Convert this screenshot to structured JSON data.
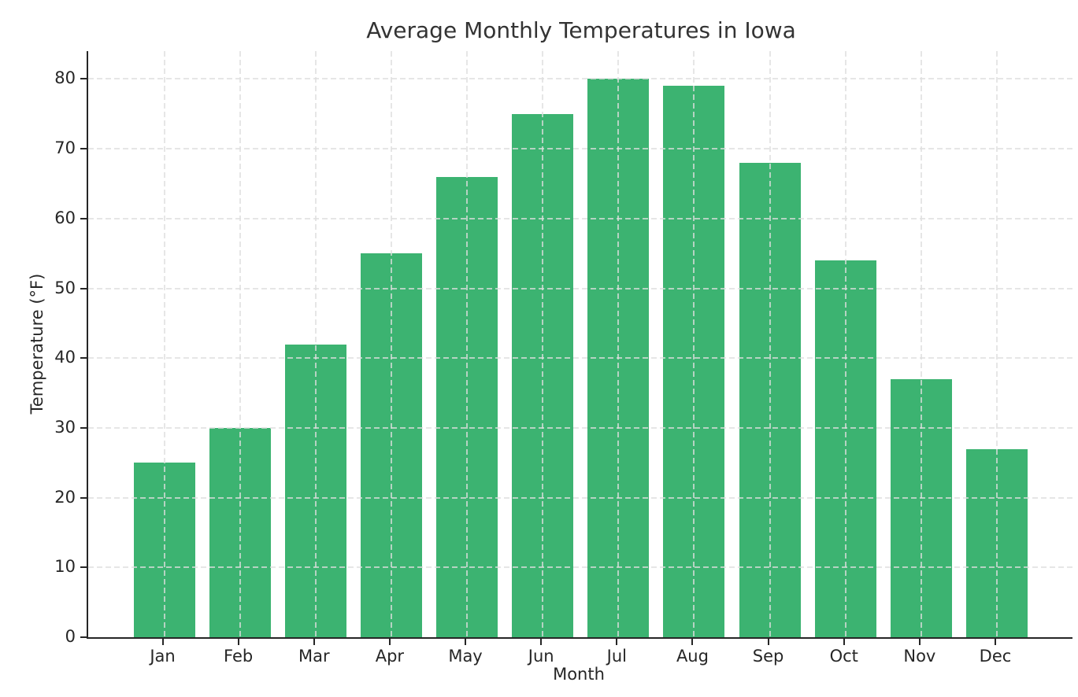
{
  "chart_data": {
    "type": "bar",
    "title": "Average Monthly Temperatures in Iowa",
    "xlabel": "Month",
    "ylabel": "Temperature (°F)",
    "categories": [
      "Jan",
      "Feb",
      "Mar",
      "Apr",
      "May",
      "Jun",
      "Jul",
      "Aug",
      "Sep",
      "Oct",
      "Nov",
      "Dec"
    ],
    "values": [
      25,
      30,
      42,
      55,
      66,
      75,
      80,
      79,
      68,
      54,
      37,
      27
    ],
    "ylim": [
      0,
      84
    ],
    "yticks": [
      0,
      10,
      20,
      30,
      40,
      50,
      60,
      70,
      80
    ],
    "grid": true,
    "grid_style": "dashed",
    "legend": "none",
    "colors": {
      "bar": "#3cb371",
      "grid": "#d2d2d2",
      "grid_over_bar": "rgba(222,222,222,0.75)",
      "axis": "#262626",
      "text": "#333333",
      "tick_text": "#262626"
    }
  }
}
